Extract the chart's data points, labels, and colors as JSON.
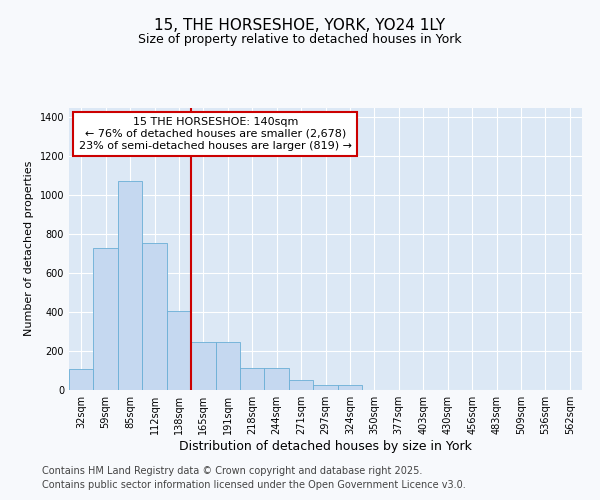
{
  "title_line1": "15, THE HORSESHOE, YORK, YO24 1LY",
  "title_line2": "Size of property relative to detached houses in York",
  "xlabel": "Distribution of detached houses by size in York",
  "ylabel": "Number of detached properties",
  "categories": [
    "32sqm",
    "59sqm",
    "85sqm",
    "112sqm",
    "138sqm",
    "165sqm",
    "191sqm",
    "218sqm",
    "244sqm",
    "271sqm",
    "297sqm",
    "324sqm",
    "350sqm",
    "377sqm",
    "403sqm",
    "430sqm",
    "456sqm",
    "483sqm",
    "509sqm",
    "536sqm",
    "562sqm"
  ],
  "values": [
    110,
    730,
    1075,
    755,
    405,
    245,
    245,
    115,
    115,
    50,
    25,
    25,
    0,
    0,
    0,
    0,
    0,
    0,
    0,
    0,
    0
  ],
  "bar_color": "#c5d8f0",
  "bar_edge_color": "#6aaed6",
  "vline_color": "#cc0000",
  "vline_x_index": 4,
  "annotation_text": "15 THE HORSESHOE: 140sqm\n← 76% of detached houses are smaller (2,678)\n23% of semi-detached houses are larger (819) →",
  "annotation_box_edgecolor": "#cc0000",
  "ylim": [
    0,
    1450
  ],
  "yticks": [
    0,
    200,
    400,
    600,
    800,
    1000,
    1200,
    1400
  ],
  "fig_bg_color": "#f7f9fc",
  "plot_bg_color": "#dce8f5",
  "grid_color": "#ffffff",
  "title_fontsize": 11,
  "subtitle_fontsize": 9,
  "xlabel_fontsize": 9,
  "ylabel_fontsize": 8,
  "tick_fontsize": 7,
  "annotation_fontsize": 8,
  "footer_fontsize": 7,
  "footer_line1": "Contains HM Land Registry data © Crown copyright and database right 2025.",
  "footer_line2": "Contains public sector information licensed under the Open Government Licence v3.0."
}
